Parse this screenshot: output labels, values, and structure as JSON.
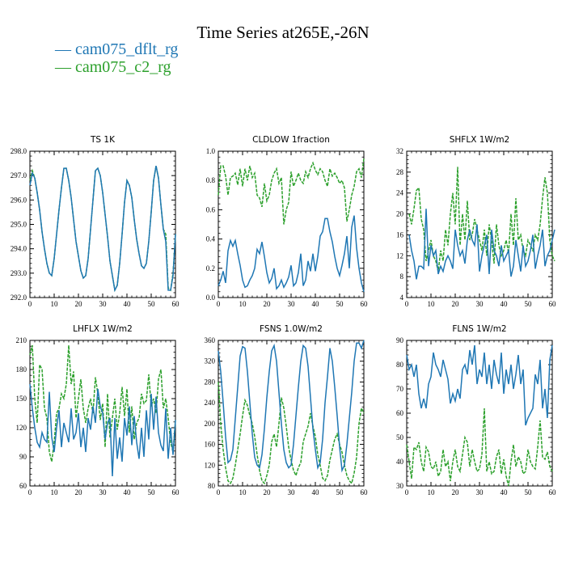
{
  "title": "Time Series at265E,-26N",
  "colors": {
    "series1": "#1f77b4",
    "series2": "#2ca02c"
  },
  "legend": [
    {
      "label": "cam075_dflt_rg",
      "color": "#1f77b4"
    },
    {
      "label": "cam075_c2_rg",
      "color": "#2ca02c"
    }
  ],
  "chart_data": [
    {
      "type": "line",
      "title": "TS  1K",
      "xlim": [
        0,
        60
      ],
      "ylim": [
        292,
        298
      ],
      "xticks": [
        0,
        10,
        20,
        30,
        40,
        50,
        60
      ],
      "yticks": [
        292,
        293,
        294,
        295,
        296,
        297,
        298
      ],
      "ytick_labels": [
        "292.0",
        "293.0",
        "294.0",
        "295.0",
        "296.0",
        "297.0",
        "298.0"
      ],
      "x_start": 0,
      "series": [
        {
          "name": "cam075_dflt_rg",
          "values": [
            296.6,
            297.1,
            296.9,
            296.3,
            295.6,
            294.7,
            294.0,
            293.4,
            293.0,
            292.9,
            293.6,
            294.6,
            295.6,
            296.5,
            297.3,
            297.3,
            296.8,
            296.1,
            295.2,
            294.3,
            293.7,
            293.1,
            292.8,
            292.9,
            293.6,
            294.8,
            296.0,
            297.2,
            297.3,
            297.0,
            296.3,
            295.4,
            294.5,
            293.5,
            292.9,
            292.3,
            292.5,
            293.4,
            294.6,
            295.9,
            296.8,
            296.6,
            296.1,
            295.2,
            294.4,
            293.8,
            293.3,
            293.2,
            293.4,
            294.3,
            295.5,
            296.8,
            297.4,
            296.9,
            295.8,
            294.8,
            294.3,
            292.3,
            292.3,
            292.9,
            294.6
          ]
        },
        {
          "name": "cam075_c2_rg",
          "values": [
            296.8,
            297.2,
            296.9,
            296.3,
            295.6,
            294.7,
            294.0,
            293.4,
            293.0,
            292.9,
            293.6,
            294.6,
            295.6,
            296.5,
            297.3,
            297.3,
            296.8,
            296.1,
            295.2,
            294.3,
            293.7,
            293.1,
            292.8,
            292.9,
            293.6,
            294.8,
            296.0,
            297.2,
            297.3,
            297.0,
            296.3,
            295.4,
            294.5,
            293.5,
            292.9,
            292.3,
            292.5,
            293.4,
            294.6,
            295.9,
            296.8,
            296.6,
            296.1,
            295.2,
            294.4,
            293.8,
            293.3,
            293.2,
            293.4,
            294.3,
            295.5,
            296.8,
            297.4,
            296.9,
            295.8,
            294.8,
            294.6,
            292.4,
            292.3,
            293.0,
            294.6
          ]
        }
      ]
    },
    {
      "type": "line",
      "title": "CLDLOW  1fraction",
      "xlim": [
        0,
        60
      ],
      "ylim": [
        0,
        1
      ],
      "xticks": [
        0,
        10,
        20,
        30,
        40,
        50,
        60
      ],
      "yticks": [
        0,
        0.2,
        0.4,
        0.6,
        0.8,
        1.0
      ],
      "ytick_labels": [
        "0.0",
        "0.2",
        "0.4",
        "0.6",
        "0.8",
        "1.0"
      ],
      "x_start": 0,
      "series": [
        {
          "name": "cam075_dflt_rg",
          "values": [
            0.08,
            0.12,
            0.18,
            0.1,
            0.32,
            0.39,
            0.35,
            0.39,
            0.3,
            0.22,
            0.12,
            0.07,
            0.08,
            0.12,
            0.15,
            0.2,
            0.33,
            0.3,
            0.38,
            0.28,
            0.17,
            0.1,
            0.13,
            0.2,
            0.06,
            0.08,
            0.12,
            0.07,
            0.1,
            0.14,
            0.22,
            0.08,
            0.1,
            0.17,
            0.3,
            0.08,
            0.12,
            0.25,
            0.18,
            0.3,
            0.18,
            0.28,
            0.42,
            0.45,
            0.54,
            0.54,
            0.45,
            0.38,
            0.28,
            0.2,
            0.15,
            0.22,
            0.3,
            0.42,
            0.2,
            0.48,
            0.56,
            0.34,
            0.2,
            0.1,
            0.04
          ]
        },
        {
          "name": "cam075_c2_rg",
          "values": [
            0.7,
            0.9,
            0.9,
            0.83,
            0.7,
            0.82,
            0.83,
            0.85,
            0.77,
            0.88,
            0.76,
            0.88,
            0.8,
            0.9,
            0.82,
            0.85,
            0.7,
            0.68,
            0.62,
            0.78,
            0.66,
            0.7,
            0.8,
            0.85,
            0.88,
            0.78,
            0.82,
            0.5,
            0.6,
            0.65,
            0.86,
            0.76,
            0.8,
            0.85,
            0.8,
            0.78,
            0.86,
            0.82,
            0.88,
            0.92,
            0.87,
            0.84,
            0.88,
            0.86,
            0.8,
            0.76,
            0.88,
            0.83,
            0.85,
            0.82,
            0.78,
            0.8,
            0.75,
            0.52,
            0.6,
            0.7,
            0.76,
            0.86,
            0.88,
            0.82,
            0.95
          ]
        }
      ]
    },
    {
      "type": "line",
      "title": "SHFLX  1W/m2",
      "xlim": [
        0,
        60
      ],
      "ylim": [
        4,
        32
      ],
      "xticks": [
        0,
        10,
        20,
        30,
        40,
        50,
        60
      ],
      "yticks": [
        4,
        8,
        12,
        16,
        20,
        24,
        28,
        32
      ],
      "ytick_labels": [
        "4",
        "8",
        "12",
        "16",
        "20",
        "24",
        "28",
        "32"
      ],
      "x_start": 1,
      "series": [
        {
          "name": "cam075_dflt_rg",
          "values": [
            16,
            13,
            11,
            7.5,
            10,
            10,
            9.5,
            21,
            10,
            14,
            12,
            13,
            8.5,
            10,
            9,
            11,
            12,
            11,
            9.5,
            17,
            14,
            12,
            13,
            10.5,
            15,
            17,
            15,
            14,
            18,
            9,
            12,
            14,
            16,
            8.5,
            17,
            13,
            12,
            10,
            14,
            11,
            12,
            13,
            8,
            10,
            15,
            12,
            9,
            14,
            10,
            11,
            13,
            16,
            9.5,
            12,
            14,
            17,
            10,
            12,
            13,
            15,
            17
          ]
        },
        {
          "name": "cam075_c2_rg",
          "values": [
            20,
            18,
            21,
            24.5,
            25,
            19,
            17,
            11,
            13,
            15,
            12,
            11,
            9,
            13,
            11,
            17,
            14,
            20,
            24,
            18,
            29,
            14,
            20,
            15,
            22.5,
            15,
            16,
            19,
            17,
            15,
            13,
            17,
            12,
            18,
            15,
            10.5,
            18,
            14,
            12,
            13,
            15,
            12.5,
            20,
            14,
            23,
            15,
            16,
            13,
            12,
            15,
            14,
            13,
            16,
            15,
            18,
            23,
            27,
            24,
            15,
            12,
            11
          ]
        }
      ]
    },
    {
      "type": "line",
      "title": "LHFLX  1W/m2",
      "xlim": [
        0,
        60
      ],
      "ylim": [
        60,
        210
      ],
      "xticks": [
        0,
        10,
        20,
        30,
        40,
        50,
        60
      ],
      "yticks": [
        60,
        90,
        120,
        150,
        180,
        210
      ],
      "ytick_labels": [
        "60",
        "90",
        "120",
        "150",
        "180",
        "210"
      ],
      "x_start": 0,
      "series": [
        {
          "name": "cam075_dflt_rg",
          "values": [
            165,
            140,
            120,
            105,
            100,
            115,
            108,
            105,
            157,
            110,
            95,
            120,
            138,
            100,
            125,
            115,
            105,
            140,
            108,
            115,
            135,
            100,
            120,
            95,
            130,
            118,
            142,
            125,
            160,
            142,
            135,
            108,
            125,
            130,
            70,
            130,
            88,
            110,
            85,
            130,
            112,
            142,
            102,
            132,
            105,
            88,
            120,
            90,
            138,
            108,
            155,
            118,
            152,
            115,
            102,
            96,
            140,
            88,
            120,
            92,
            128
          ]
        },
        {
          "name": "cam075_c2_rg",
          "values": [
            195,
            205,
            150,
            125,
            185,
            180,
            140,
            130,
            95,
            85,
            105,
            135,
            140,
            155,
            150,
            165,
            205,
            165,
            178,
            130,
            150,
            170,
            140,
            125,
            140,
            150,
            135,
            172,
            155,
            128,
            145,
            100,
            155,
            110,
            130,
            150,
            118,
            135,
            162,
            132,
            160,
            115,
            142,
            108,
            125,
            130,
            155,
            145,
            148,
            175,
            142,
            150,
            135,
            170,
            180,
            140,
            150,
            130,
            105,
            95,
            128
          ]
        }
      ]
    },
    {
      "type": "line",
      "title": "FSNS  1.0W/m2",
      "xlim": [
        0,
        60
      ],
      "ylim": [
        80,
        360
      ],
      "xticks": [
        0,
        10,
        20,
        30,
        40,
        50,
        60
      ],
      "yticks": [
        80,
        120,
        160,
        200,
        240,
        280,
        320,
        360
      ],
      "ytick_labels": [
        "80",
        "120",
        "160",
        "200",
        "240",
        "280",
        "320",
        "360"
      ],
      "x_start": 0,
      "series": [
        {
          "name": "cam075_dflt_rg",
          "values": [
            340,
            300,
            240,
            175,
            125,
            130,
            150,
            210,
            270,
            330,
            348,
            345,
            300,
            240,
            180,
            135,
            120,
            115,
            140,
            190,
            250,
            300,
            340,
            350,
            320,
            260,
            200,
            150,
            125,
            115,
            120,
            160,
            215,
            270,
            320,
            350,
            345,
            310,
            250,
            190,
            150,
            115,
            125,
            170,
            240,
            290,
            345,
            320,
            270,
            215,
            155,
            110,
            120,
            160,
            210,
            260,
            320,
            355,
            355,
            345,
            360
          ]
        },
        {
          "name": "cam075_c2_rg",
          "values": [
            280,
            200,
            150,
            115,
            90,
            85,
            95,
            120,
            150,
            180,
            215,
            245,
            235,
            215,
            200,
            175,
            140,
            110,
            90,
            85,
            100,
            120,
            165,
            180,
            155,
            200,
            250,
            230,
            195,
            155,
            130,
            110,
            100,
            115,
            125,
            165,
            180,
            195,
            220,
            195,
            175,
            140,
            120,
            95,
            90,
            100,
            130,
            150,
            170,
            180,
            160,
            145,
            120,
            100,
            90,
            85,
            105,
            135,
            200,
            230,
            220
          ]
        }
      ]
    },
    {
      "type": "line",
      "title": "FLNS  1W/m2",
      "xlim": [
        0,
        60
      ],
      "ylim": [
        30,
        90
      ],
      "xticks": [
        0,
        10,
        20,
        30,
        40,
        50,
        60
      ],
      "yticks": [
        30,
        40,
        50,
        60,
        70,
        80,
        90
      ],
      "ytick_labels": [
        "30",
        "40",
        "50",
        "60",
        "70",
        "80",
        "90"
      ],
      "x_start": 0,
      "series": [
        {
          "name": "cam075_dflt_rg",
          "values": [
            84,
            78,
            80,
            75,
            80,
            68,
            62,
            66,
            62,
            72,
            75,
            85,
            80,
            78,
            75,
            82,
            78,
            74,
            64,
            68,
            65,
            70,
            66,
            78,
            80,
            76,
            86,
            80,
            88,
            72,
            78,
            75,
            85,
            72,
            80,
            70,
            82,
            76,
            72,
            85,
            68,
            78,
            72,
            80,
            70,
            76,
            84,
            72,
            78,
            55,
            58,
            60,
            62,
            76,
            72,
            82,
            62,
            70,
            58,
            82,
            88
          ]
        },
        {
          "name": "cam075_c2_rg",
          "values": [
            47,
            40,
            33,
            46,
            45,
            48,
            40,
            36,
            46,
            44,
            38,
            37,
            40,
            34,
            36,
            45,
            38,
            40,
            32,
            40,
            45,
            38,
            36,
            43,
            50,
            48,
            38,
            45,
            40,
            36,
            37,
            43,
            62,
            36,
            40,
            35,
            36,
            42,
            45,
            35,
            41,
            34,
            30,
            40,
            47,
            38,
            42,
            40,
            35,
            36,
            45,
            40,
            38,
            37,
            46,
            57,
            42,
            41,
            44,
            38,
            36
          ]
        }
      ]
    }
  ]
}
